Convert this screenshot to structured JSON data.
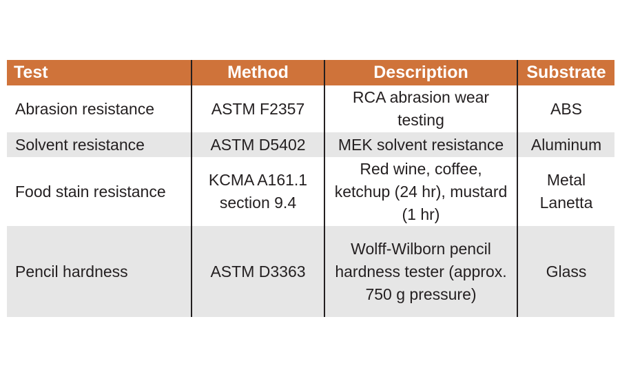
{
  "table": {
    "headers": [
      "Test",
      "Method",
      "Description",
      "Substrate"
    ],
    "rows": [
      {
        "test": "Abrasion resistance",
        "method": "ASTM F2357",
        "description": "RCA abrasion wear testing",
        "substrate": "ABS"
      },
      {
        "test": "Solvent resistance",
        "method": "ASTM D5402",
        "description": "MEK solvent resistance",
        "substrate": "Aluminum"
      },
      {
        "test": "Food stain resistance",
        "method": "KCMA A161.1 section 9.4",
        "description": "Red wine, coffee, ketchup (24 hr), mustard (1 hr)",
        "substrate": "Metal Lanetta"
      },
      {
        "test": "Pencil hardness",
        "method": "ASTM D3363",
        "description": "Wolff-Wilborn pencil hardness tester (approx. 750 g pressure)",
        "substrate": "Glass"
      }
    ]
  },
  "colors": {
    "header_bg": "#cf733a",
    "header_text": "#ffffff",
    "row_shade": "#e6e6e6",
    "text": "#231f20"
  }
}
